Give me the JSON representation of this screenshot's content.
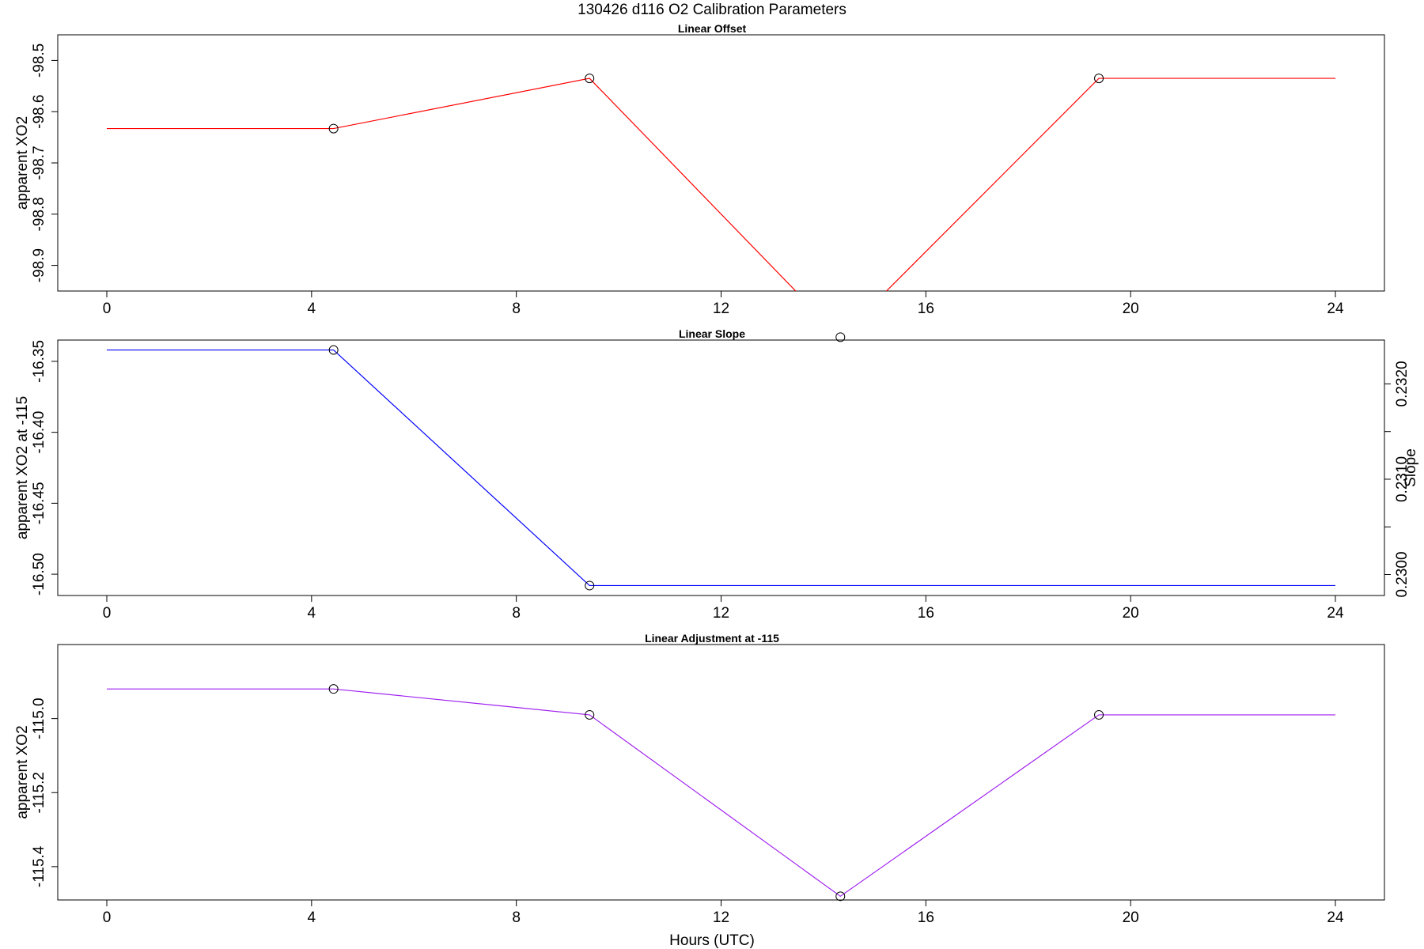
{
  "title": "130426   d116   O2 Calibration Parameters",
  "xlabel": "Hours (UTC)",
  "x_ticks": [
    "0",
    "4",
    "8",
    "12",
    "16",
    "20",
    "24"
  ],
  "colors": {
    "offset_line": "#ff0000",
    "slope_line": "#0000ff",
    "adjustment_line": "#a020f0",
    "marker": "#000000"
  },
  "chart_data": [
    {
      "type": "line",
      "title": "Linear Offset",
      "xlabel": "",
      "ylabel": "apparent XO2",
      "xlim": [
        0,
        24
      ],
      "ylim": [
        -98.95,
        -98.45
      ],
      "y_ticks": [
        "-98.9",
        "-98.8",
        "-98.7",
        "-98.6",
        "-98.5"
      ],
      "x": [
        0,
        4.43,
        9.43,
        14.33,
        19.38,
        24
      ],
      "series": [
        {
          "values": [
            -98.633,
            -98.633,
            -98.535,
            -99.04,
            -98.535,
            -98.535
          ]
        }
      ],
      "markers_at": [
        4.43,
        9.43,
        14.33,
        19.38
      ],
      "grid": false
    },
    {
      "type": "line",
      "title": "Linear Slope",
      "xlabel": "",
      "ylabel": "apparent XO2 at -115",
      "ylabel_right": "Slope",
      "xlim": [
        0,
        24
      ],
      "ylim": [
        -16.515,
        -16.335
      ],
      "y_ticks": [
        "-16.50",
        "-16.45",
        "-16.40",
        "-16.35"
      ],
      "y_right_ticks": [
        "0.2300",
        "0.2310",
        "0.2320"
      ],
      "y_right_range": [
        0.22978,
        0.23246
      ],
      "x": [
        0,
        4.43,
        9.43,
        24
      ],
      "series": [
        {
          "values": [
            -16.342,
            -16.342,
            -16.508,
            -16.508
          ]
        }
      ],
      "markers_at": [
        4.43,
        9.43
      ],
      "grid": false
    },
    {
      "type": "line",
      "title": "Linear Adjustment at -115",
      "xlabel": "Hours (UTC)",
      "ylabel": "apparent XO2",
      "xlim": [
        0,
        24
      ],
      "ylim": [
        -115.49,
        -114.8
      ],
      "y_ticks": [
        "-115.4",
        "-115.2",
        "-115.0"
      ],
      "x": [
        0,
        4.43,
        9.43,
        14.33,
        19.38,
        24
      ],
      "series": [
        {
          "values": [
            -114.92,
            -114.92,
            -114.99,
            -115.48,
            -114.99,
            -114.99
          ]
        }
      ],
      "markers_at": [
        4.43,
        9.43,
        14.33,
        19.38
      ],
      "grid": false
    }
  ]
}
